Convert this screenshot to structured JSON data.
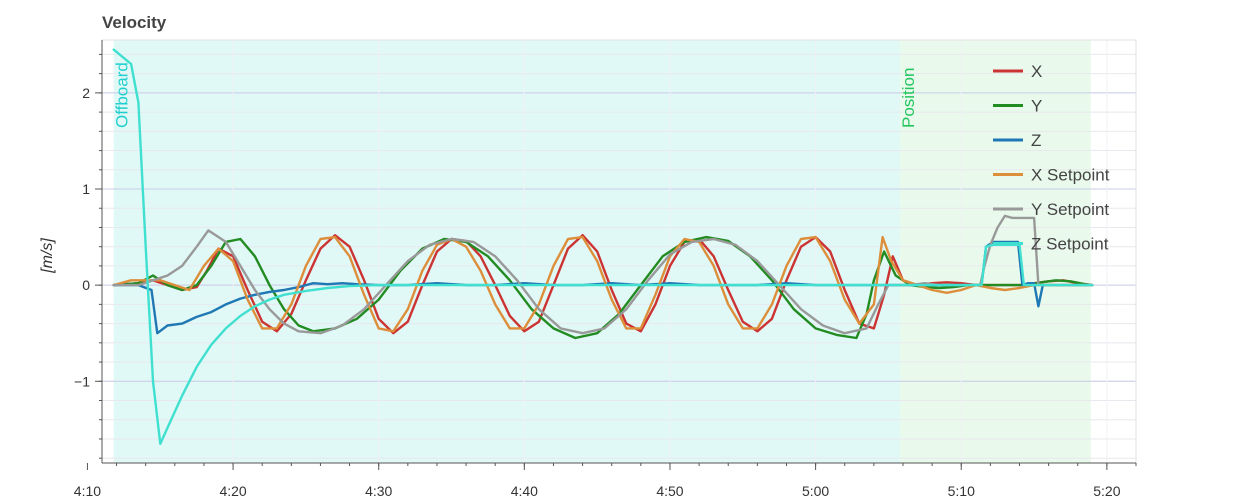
{
  "chart_data": {
    "type": "line",
    "title": "Velocity",
    "ylabel": "[m/s]",
    "xlim": [
      251,
      322
    ],
    "ylim": [
      -1.85,
      2.55
    ],
    "xticks": [
      {
        "value": 250,
        "label": "4:10"
      },
      {
        "value": 260,
        "label": "4:20"
      },
      {
        "value": 270,
        "label": "4:30"
      },
      {
        "value": 280,
        "label": "4:40"
      },
      {
        "value": 290,
        "label": "4:50"
      },
      {
        "value": 300,
        "label": "5:00"
      },
      {
        "value": 310,
        "label": "5:10"
      },
      {
        "value": 320,
        "label": "5:20"
      }
    ],
    "yticks": [
      {
        "value": 2,
        "label": "2"
      },
      {
        "value": 1,
        "label": "1"
      },
      {
        "value": 0,
        "label": "0"
      },
      {
        "value": -1,
        "label": "−1"
      }
    ],
    "grid": true,
    "legend_position": "top-right",
    "flight_modes": [
      {
        "name": "Offboard",
        "start": 251.8,
        "end": 305.8,
        "color": "#d7f7f3",
        "text_color": "#1fcfcf"
      },
      {
        "name": "Position",
        "start": 305.8,
        "end": 318.9,
        "color": "#e2f8e6",
        "text_color": "#22c55e"
      }
    ],
    "series": [
      {
        "name": "X",
        "color": "#cc3333",
        "x": [
          251.8,
          253.5,
          254.5,
          255.5,
          256.5,
          257.5,
          258.2,
          259,
          260,
          261,
          262,
          263,
          264,
          265,
          266,
          267,
          268,
          269,
          270,
          271,
          272,
          273,
          274,
          275,
          276,
          277,
          278,
          279,
          280,
          281,
          282,
          283,
          284,
          285,
          286,
          287,
          288,
          289,
          290,
          291,
          292,
          293,
          294,
          295,
          296,
          297,
          298,
          299,
          300,
          301,
          302,
          303,
          304,
          304.7,
          305.3,
          306,
          307,
          308,
          309,
          310,
          311,
          312,
          313,
          314,
          315,
          316,
          317,
          318,
          319
        ],
        "y": [
          0.0,
          0.02,
          0.05,
          0.0,
          -0.05,
          -0.02,
          0.15,
          0.38,
          0.3,
          -0.05,
          -0.38,
          -0.48,
          -0.3,
          0.05,
          0.38,
          0.52,
          0.4,
          0.05,
          -0.35,
          -0.5,
          -0.38,
          0.0,
          0.35,
          0.48,
          0.46,
          0.3,
          0.0,
          -0.32,
          -0.48,
          -0.38,
          0.0,
          0.38,
          0.52,
          0.35,
          -0.05,
          -0.4,
          -0.48,
          -0.2,
          0.2,
          0.45,
          0.48,
          0.3,
          -0.05,
          -0.38,
          -0.48,
          -0.35,
          0.05,
          0.4,
          0.5,
          0.35,
          -0.05,
          -0.4,
          -0.45,
          -0.1,
          0.3,
          0.05,
          0.0,
          0.02,
          0.03,
          0.02,
          0.0,
          0.0,
          0.0,
          0.0,
          0.02,
          0.04,
          0.05,
          0.02,
          0.0
        ]
      },
      {
        "name": "Y",
        "color": "#228b22",
        "x": [
          251.8,
          253.5,
          254.5,
          255.5,
          256.5,
          257.5,
          258.5,
          259.5,
          260.5,
          261.5,
          262.5,
          263.5,
          264.5,
          265.5,
          267,
          268.5,
          270,
          271.5,
          273,
          274.5,
          276,
          277.5,
          279,
          280.5,
          282,
          283.5,
          285,
          286.5,
          288,
          289.5,
          291,
          292.5,
          294,
          295.5,
          297,
          298.5,
          300,
          301.5,
          302.8,
          303.5,
          304,
          304.7,
          305.5,
          306.5,
          307.5,
          308.5,
          309.5,
          310.5,
          311.5,
          312.5,
          313.5,
          314.5,
          315.5,
          316.5,
          317.5,
          318.5,
          319
        ],
        "y": [
          0.0,
          0.02,
          0.1,
          0.0,
          -0.05,
          0.0,
          0.2,
          0.45,
          0.48,
          0.3,
          0.0,
          -0.25,
          -0.42,
          -0.48,
          -0.45,
          -0.35,
          -0.15,
          0.15,
          0.38,
          0.48,
          0.45,
          0.3,
          0.05,
          -0.25,
          -0.45,
          -0.55,
          -0.5,
          -0.3,
          0.0,
          0.3,
          0.45,
          0.5,
          0.46,
          0.3,
          0.05,
          -0.25,
          -0.45,
          -0.52,
          -0.55,
          -0.3,
          0.05,
          0.35,
          0.1,
          0.0,
          -0.02,
          -0.03,
          -0.02,
          0.0,
          0.0,
          0.0,
          0.0,
          0.0,
          0.03,
          0.05,
          0.04,
          0.01,
          0.0
        ]
      },
      {
        "name": "Z",
        "color": "#1f77b4",
        "x": [
          251.8,
          253.5,
          254.4,
          254.8,
          255.5,
          256.5,
          257.5,
          258.5,
          259.5,
          260.5,
          261.5,
          262.5,
          263.5,
          264.5,
          265.5,
          266.5,
          267.5,
          268.5,
          270,
          272,
          274,
          276,
          278,
          280,
          282,
          284,
          286,
          288,
          290,
          292,
          294,
          296,
          298,
          300,
          302,
          304,
          306,
          308,
          310,
          311.4,
          311.7,
          312.2,
          312.8,
          313.4,
          313.9,
          314.2,
          314.6,
          315.0,
          315.3,
          315.6,
          316,
          317,
          318,
          319
        ],
        "y": [
          0.0,
          0.0,
          -0.05,
          -0.5,
          -0.42,
          -0.4,
          -0.33,
          -0.28,
          -0.2,
          -0.14,
          -0.1,
          -0.07,
          -0.05,
          -0.02,
          0.02,
          0.01,
          0.02,
          0.01,
          0.0,
          0.0,
          0.02,
          0.0,
          0.0,
          0.02,
          0.0,
          0.0,
          0.02,
          0.0,
          0.02,
          0.0,
          0.0,
          0.0,
          0.02,
          0.0,
          0.0,
          0.0,
          0.0,
          0.0,
          0.0,
          0.0,
          0.4,
          0.45,
          0.45,
          0.45,
          0.45,
          0.0,
          0.02,
          0.02,
          -0.22,
          0.0,
          0.0,
          0.0,
          0.0,
          0.0
        ]
      },
      {
        "name": "X Setpoint",
        "color": "#dd8e3a",
        "x": [
          251.8,
          253,
          254,
          255,
          256,
          257,
          258,
          259,
          260,
          261,
          262,
          263,
          264,
          265,
          266,
          267,
          268,
          269,
          270,
          271,
          272,
          273,
          274,
          275,
          276,
          277,
          278,
          279,
          280,
          281,
          282,
          283,
          284,
          285,
          286,
          287,
          288,
          289,
          290,
          291,
          292,
          293,
          294,
          295,
          296,
          297,
          298,
          299,
          300,
          301,
          302,
          303,
          304,
          304.6,
          305.2,
          306,
          307,
          308,
          309,
          310,
          311,
          312,
          313,
          314,
          315,
          316,
          317,
          318,
          319
        ],
        "y": [
          0.0,
          0.05,
          0.05,
          0.05,
          0.0,
          -0.05,
          0.2,
          0.38,
          0.25,
          -0.15,
          -0.45,
          -0.45,
          -0.2,
          0.2,
          0.48,
          0.5,
          0.3,
          -0.1,
          -0.45,
          -0.48,
          -0.25,
          0.15,
          0.42,
          0.48,
          0.4,
          0.15,
          -0.2,
          -0.45,
          -0.45,
          -0.2,
          0.2,
          0.48,
          0.5,
          0.25,
          -0.15,
          -0.45,
          -0.45,
          -0.1,
          0.3,
          0.48,
          0.45,
          0.2,
          -0.2,
          -0.45,
          -0.45,
          -0.2,
          0.2,
          0.48,
          0.5,
          0.25,
          -0.15,
          -0.4,
          -0.2,
          0.5,
          0.25,
          0.05,
          0.0,
          -0.05,
          -0.08,
          -0.05,
          0.0,
          -0.03,
          -0.05,
          -0.03,
          0.0,
          0.0,
          0.0,
          0.0,
          0.0
        ]
      },
      {
        "name": "Y Setpoint",
        "color": "#999999",
        "x": [
          251.8,
          253.5,
          254.5,
          255.5,
          256.5,
          257.5,
          258.3,
          259.5,
          260.5,
          261.5,
          262.5,
          263.5,
          264.5,
          266,
          267.5,
          269,
          270.5,
          272,
          273.5,
          275,
          276.5,
          278,
          279.5,
          281,
          282.5,
          284,
          285.5,
          287,
          288.5,
          290,
          291.5,
          293,
          294.5,
          296,
          297.5,
          299,
          300.5,
          302,
          303.5,
          304.3,
          305,
          305.8,
          306.5,
          307.5,
          308.5,
          309.5,
          310.5,
          311.3,
          311.6,
          312,
          312.5,
          313,
          313.5,
          314.1,
          314.4,
          315,
          315.3,
          316,
          317,
          318,
          319
        ],
        "y": [
          0.0,
          0.0,
          0.05,
          0.1,
          0.2,
          0.4,
          0.57,
          0.45,
          0.2,
          -0.05,
          -0.25,
          -0.4,
          -0.48,
          -0.5,
          -0.42,
          -0.25,
          0.0,
          0.25,
          0.42,
          0.48,
          0.45,
          0.3,
          0.05,
          -0.25,
          -0.45,
          -0.5,
          -0.45,
          -0.25,
          0.05,
          0.32,
          0.45,
          0.48,
          0.42,
          0.25,
          0.0,
          -0.25,
          -0.42,
          -0.5,
          -0.45,
          -0.2,
          0.0,
          0.0,
          0.0,
          0.02,
          0.0,
          0.0,
          0.0,
          0.0,
          0.2,
          0.42,
          0.6,
          0.72,
          0.7,
          0.7,
          0.7,
          0.7,
          0.0,
          0.0,
          0.0,
          0.0,
          0.0
        ]
      },
      {
        "name": "Z Setpoint",
        "color": "#40e0d0",
        "x": [
          251.8,
          253,
          253.5,
          254,
          254.5,
          255,
          255.6,
          256.5,
          257.5,
          258.5,
          259.5,
          260.5,
          261.5,
          262.5,
          263.5,
          265,
          266.5,
          268,
          270,
          272,
          275,
          280,
          285,
          290,
          295,
          300,
          305,
          308,
          310,
          311.4,
          311.7,
          312.2,
          312.8,
          313.4,
          314,
          314.3,
          315,
          316,
          317,
          318,
          319
        ],
        "y": [
          2.45,
          2.3,
          1.9,
          0.4,
          -1.0,
          -1.65,
          -1.45,
          -1.15,
          -0.85,
          -0.62,
          -0.45,
          -0.32,
          -0.22,
          -0.15,
          -0.1,
          -0.06,
          -0.03,
          -0.01,
          0.0,
          0.0,
          0.0,
          0.0,
          0.0,
          0.0,
          0.0,
          0.0,
          0.0,
          0.0,
          0.0,
          0.0,
          0.4,
          0.42,
          0.42,
          0.42,
          0.42,
          0.0,
          0.0,
          0.0,
          0.0,
          0.0,
          0.0
        ]
      }
    ]
  }
}
